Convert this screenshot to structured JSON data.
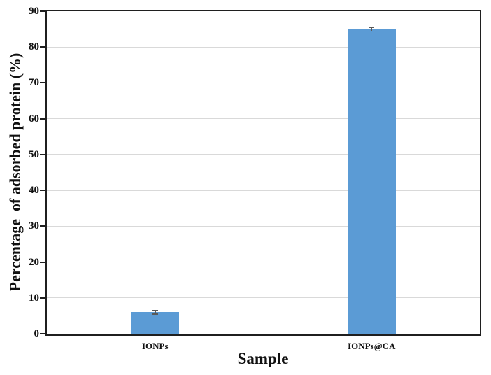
{
  "chart_data": {
    "type": "bar",
    "title": "",
    "xlabel": "Sample",
    "ylabel": "Percentage  of adsorbed protein (%)",
    "categories": [
      "IONPs",
      "IONPs@CA"
    ],
    "values": [
      6,
      85
    ],
    "errors": [
      0.5,
      0.5
    ],
    "ylim": [
      0,
      90
    ],
    "ytick_step": 10,
    "grid": true,
    "legend_position": "none",
    "bar_color": "#5B9BD5",
    "axis_color": "#1f1f1f",
    "gridline_color": "#d9d9d9",
    "error_bar_color": "#595959"
  }
}
